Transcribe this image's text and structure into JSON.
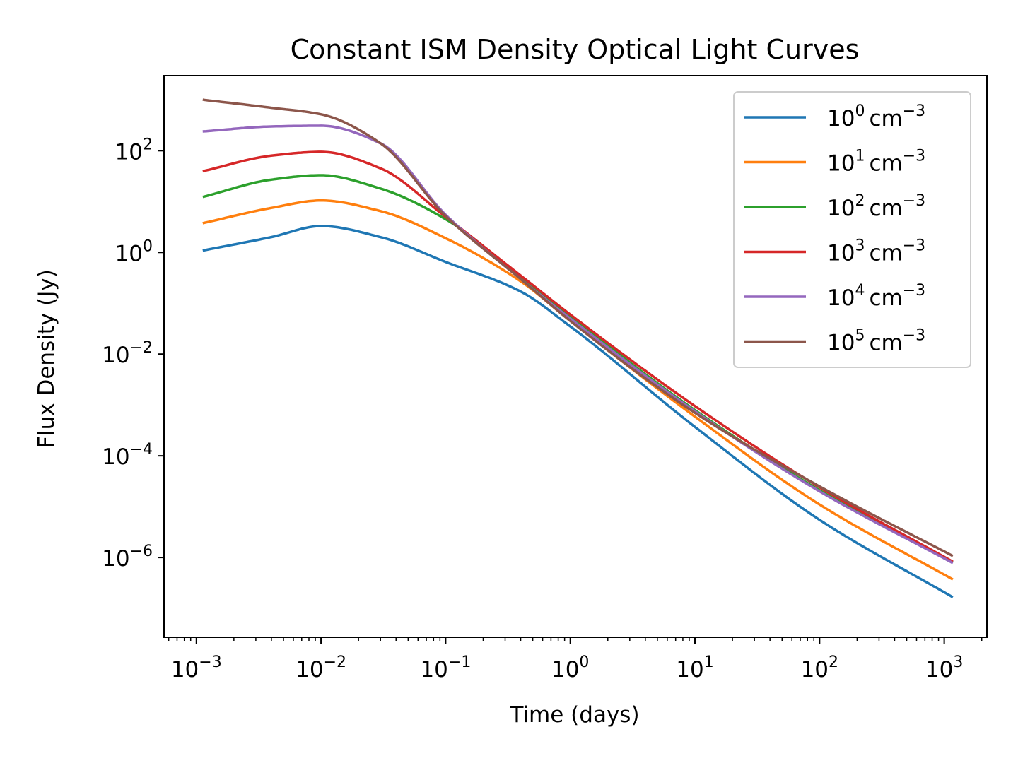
{
  "chart_data": {
    "type": "line",
    "title": "Constant ISM Density Optical Light Curves",
    "xlabel": "Time (days)",
    "ylabel": "Flux Density (Jy)",
    "xscale": "log",
    "yscale": "log",
    "xlim": [
      0.00055,
      2200
    ],
    "ylim": [
      2.7e-08,
      3000
    ],
    "xticks": [
      {
        "base": "10",
        "exp": "−3",
        "value": 0.001
      },
      {
        "base": "10",
        "exp": "−2",
        "value": 0.01
      },
      {
        "base": "10",
        "exp": "−1",
        "value": 0.1
      },
      {
        "base": "10",
        "exp": "0",
        "value": 1
      },
      {
        "base": "10",
        "exp": "1",
        "value": 10
      },
      {
        "base": "10",
        "exp": "2",
        "value": 100
      },
      {
        "base": "10",
        "exp": "3",
        "value": 1000
      }
    ],
    "yticks": [
      {
        "base": "10",
        "exp": "2",
        "value": 100
      },
      {
        "base": "10",
        "exp": "0",
        "value": 1
      },
      {
        "base": "10",
        "exp": "−2",
        "value": 0.01
      },
      {
        "base": "10",
        "exp": "−4",
        "value": 0.0001
      },
      {
        "base": "10",
        "exp": "−6",
        "value": 1e-06
      }
    ],
    "grid": false,
    "legend_position": "top-right",
    "x": [
      0.00115,
      0.004,
      0.01,
      0.03,
      0.1,
      0.4,
      1,
      10,
      100,
      1150
    ],
    "series": [
      {
        "name_base": "10",
        "name_exp": "0",
        "name_unit": "cm",
        "name_unit_exp": "−3",
        "color": "#1f77b4",
        "values": [
          1.1,
          2.0,
          3.3,
          2.0,
          0.65,
          0.17,
          0.035,
          0.00037,
          5.5e-06,
          1.7e-07
        ]
      },
      {
        "name_base": "10",
        "name_exp": "1",
        "name_unit": "cm",
        "name_unit_exp": "−3",
        "color": "#ff7f0e",
        "values": [
          3.8,
          7.5,
          10.5,
          6.5,
          1.9,
          0.27,
          0.045,
          0.00059,
          1.1e-05,
          3.8e-07
        ]
      },
      {
        "name_base": "10",
        "name_exp": "2",
        "name_unit": "cm",
        "name_unit_exp": "−3",
        "color": "#2ca02c",
        "values": [
          12.5,
          27,
          33,
          18,
          4.5,
          0.33,
          0.055,
          0.00079,
          2.1e-05,
          8.2e-07
        ]
      },
      {
        "name_base": "10",
        "name_exp": "3",
        "name_unit": "cm",
        "name_unit_exp": "−3",
        "color": "#d62728",
        "values": [
          40,
          80,
          95,
          45,
          5.0,
          0.35,
          0.06,
          0.00095,
          2.4e-05,
          8.5e-07
        ]
      },
      {
        "name_base": "10",
        "name_exp": "4",
        "name_unit": "cm",
        "name_unit_exp": "−3",
        "color": "#9467bd",
        "values": [
          240,
          300,
          310,
          140,
          5.5,
          0.3,
          0.05,
          0.00075,
          2e-05,
          8e-07
        ]
      },
      {
        "name_base": "10",
        "name_exp": "5",
        "name_unit": "cm",
        "name_unit_exp": "−3",
        "color": "#8c564b",
        "values": [
          1000,
          700,
          520,
          140,
          5.2,
          0.3,
          0.045,
          0.0007,
          2.5e-05,
          1.1e-06
        ]
      }
    ]
  }
}
